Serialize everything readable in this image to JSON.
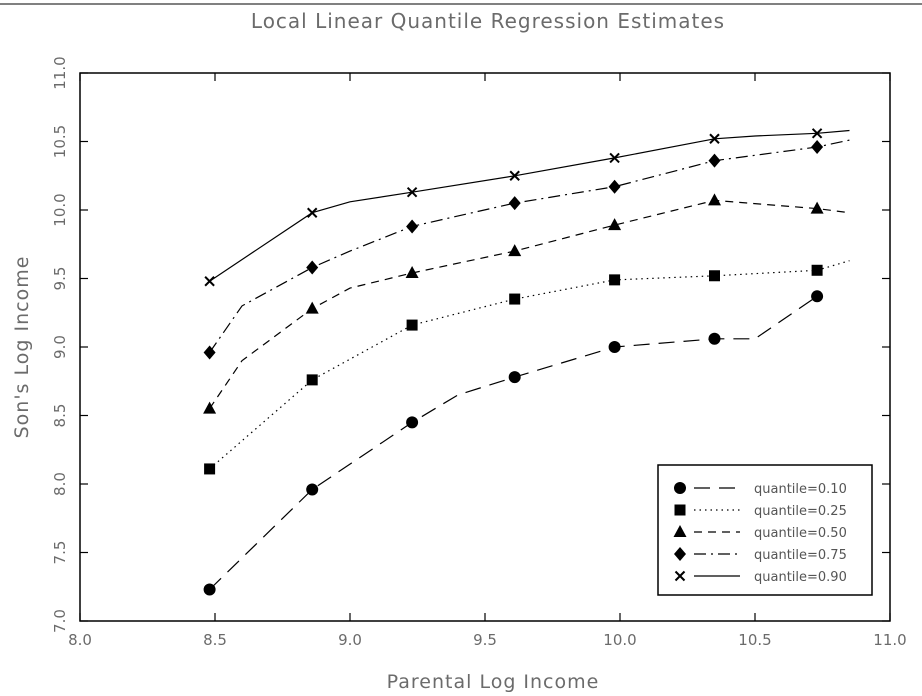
{
  "chart_data": {
    "type": "line",
    "title": "Local Linear Quantile Regression Estimates",
    "xlabel": "Parental Log Income",
    "ylabel": "Son's Log Income",
    "xlim": [
      8.0,
      11.0
    ],
    "ylim": [
      7.0,
      11.0
    ],
    "xticks": [
      "8.0",
      "8.5",
      "9.0",
      "9.5",
      "10.0",
      "10.5",
      "11.0"
    ],
    "yticks": [
      "7.0",
      "7.5",
      "8.0",
      "8.5",
      "9.0",
      "9.5",
      "10.0",
      "10.5",
      "11.0"
    ],
    "grid": false,
    "legend_position": "bottom-right",
    "x": [
      8.48,
      8.86,
      9.23,
      9.61,
      9.98,
      10.35,
      10.73
    ],
    "series": [
      {
        "name": "quantile=0.10",
        "marker": "circle",
        "dash": "long-dash",
        "values": [
          7.23,
          7.96,
          8.45,
          8.78,
          9.0,
          9.06,
          9.37
        ],
        "line_x": [
          8.48,
          8.86,
          9.23,
          9.4,
          9.61,
          9.98,
          10.35,
          10.5,
          10.73
        ],
        "line_y": [
          7.23,
          7.96,
          8.45,
          8.65,
          8.78,
          9.0,
          9.06,
          9.06,
          9.37
        ]
      },
      {
        "name": "quantile=0.25",
        "marker": "square",
        "dash": "dotted",
        "values": [
          8.11,
          8.76,
          9.16,
          9.35,
          9.49,
          9.52,
          9.56
        ],
        "line_x": [
          8.48,
          8.86,
          9.23,
          9.61,
          9.98,
          10.35,
          10.73,
          10.85
        ],
        "line_y": [
          8.11,
          8.76,
          9.16,
          9.35,
          9.49,
          9.52,
          9.56,
          9.63
        ]
      },
      {
        "name": "quantile=0.50",
        "marker": "triangle",
        "dash": "short-dash",
        "values": [
          8.55,
          9.28,
          9.54,
          9.7,
          9.89,
          10.07,
          10.01
        ],
        "line_x": [
          8.48,
          8.6,
          8.86,
          9.0,
          9.23,
          9.61,
          9.98,
          10.35,
          10.73,
          10.85
        ],
        "line_y": [
          8.55,
          8.9,
          9.28,
          9.43,
          9.54,
          9.7,
          9.89,
          10.07,
          10.01,
          9.98
        ]
      },
      {
        "name": "quantile=0.75",
        "marker": "diamond",
        "dash": "dash-dot",
        "values": [
          8.96,
          9.58,
          9.88,
          10.05,
          10.17,
          10.36,
          10.46
        ],
        "line_x": [
          8.48,
          8.6,
          8.86,
          9.0,
          9.23,
          9.61,
          9.98,
          10.35,
          10.73,
          10.85
        ],
        "line_y": [
          8.96,
          9.3,
          9.58,
          9.7,
          9.88,
          10.05,
          10.17,
          10.36,
          10.46,
          10.51
        ]
      },
      {
        "name": "quantile=0.90",
        "marker": "x",
        "dash": "solid",
        "values": [
          9.48,
          9.98,
          10.13,
          10.25,
          10.38,
          10.52,
          10.56
        ],
        "line_x": [
          8.48,
          8.86,
          9.0,
          9.23,
          9.61,
          9.98,
          10.35,
          10.5,
          10.73,
          10.85
        ],
        "line_y": [
          9.48,
          9.98,
          10.06,
          10.13,
          10.25,
          10.38,
          10.52,
          10.54,
          10.56,
          10.58
        ]
      }
    ]
  }
}
